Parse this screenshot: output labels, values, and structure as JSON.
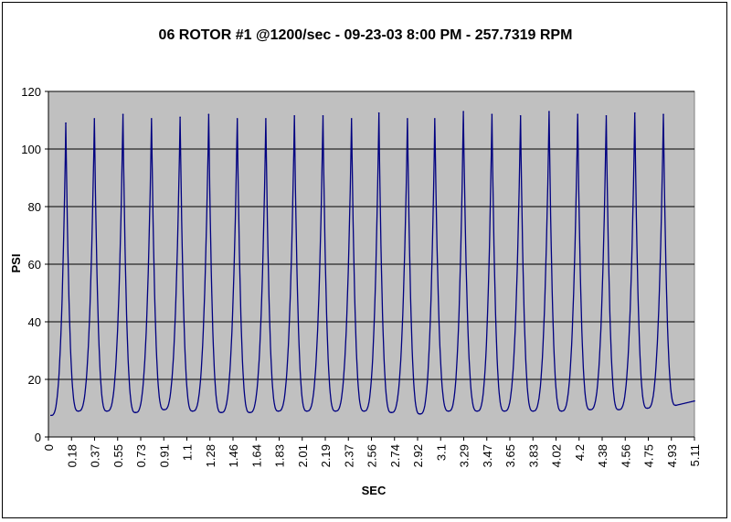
{
  "chart_data": {
    "type": "line",
    "title": "06 ROTOR #1 @1200/sec - 09-23-03 8:00 PM - 257.7319 RPM",
    "xlabel": "SEC",
    "ylabel": "PSI",
    "ylim": [
      0,
      120
    ],
    "y_ticks": [
      "0",
      "20",
      "40",
      "60",
      "80",
      "100",
      "120"
    ],
    "x_tick_labels": [
      "0",
      "0.18",
      "0.37",
      "0.55",
      "0.73",
      "0.91",
      "1.1",
      "1.28",
      "1.46",
      "1.64",
      "1.83",
      "2.01",
      "2.19",
      "2.37",
      "2.56",
      "2.74",
      "2.92",
      "3.1",
      "3.29",
      "3.47",
      "3.65",
      "3.83",
      "4.02",
      "4.2",
      "4.38",
      "4.56",
      "4.75",
      "4.93",
      "5.11"
    ],
    "xlim": [
      0,
      5.2
    ],
    "grid": true,
    "plot_background": "#c0c0c0",
    "series": [
      {
        "color": "#000080",
        "peaks": [
          {
            "x": 0.14,
            "y": 109
          },
          {
            "x": 0.37,
            "y": 110.5
          },
          {
            "x": 0.6,
            "y": 112
          },
          {
            "x": 0.83,
            "y": 110.5
          },
          {
            "x": 1.06,
            "y": 111
          },
          {
            "x": 1.29,
            "y": 112
          },
          {
            "x": 1.52,
            "y": 110.5
          },
          {
            "x": 1.75,
            "y": 110.5
          },
          {
            "x": 1.98,
            "y": 111.5
          },
          {
            "x": 2.21,
            "y": 111.5
          },
          {
            "x": 2.44,
            "y": 110.5
          },
          {
            "x": 2.66,
            "y": 112.5
          },
          {
            "x": 2.89,
            "y": 110.5
          },
          {
            "x": 3.11,
            "y": 110.5
          },
          {
            "x": 3.34,
            "y": 113
          },
          {
            "x": 3.57,
            "y": 112
          },
          {
            "x": 3.8,
            "y": 111.5
          },
          {
            "x": 4.03,
            "y": 113
          },
          {
            "x": 4.26,
            "y": 112
          },
          {
            "x": 4.49,
            "y": 111.5
          },
          {
            "x": 4.72,
            "y": 112.5
          },
          {
            "x": 4.95,
            "y": 112
          }
        ],
        "troughs": [
          {
            "x": 0.02,
            "y": 7.5
          },
          {
            "x": 0.24,
            "y": 9
          },
          {
            "x": 0.47,
            "y": 9
          },
          {
            "x": 0.7,
            "y": 8.5
          },
          {
            "x": 0.93,
            "y": 9.5
          },
          {
            "x": 1.16,
            "y": 9
          },
          {
            "x": 1.39,
            "y": 8.5
          },
          {
            "x": 1.62,
            "y": 8.5
          },
          {
            "x": 1.85,
            "y": 9
          },
          {
            "x": 2.08,
            "y": 9
          },
          {
            "x": 2.31,
            "y": 9
          },
          {
            "x": 2.54,
            "y": 9
          },
          {
            "x": 2.76,
            "y": 8.5
          },
          {
            "x": 2.99,
            "y": 8
          },
          {
            "x": 3.22,
            "y": 9
          },
          {
            "x": 3.45,
            "y": 9
          },
          {
            "x": 3.67,
            "y": 9
          },
          {
            "x": 3.9,
            "y": 9
          },
          {
            "x": 4.13,
            "y": 9
          },
          {
            "x": 4.36,
            "y": 9.5
          },
          {
            "x": 4.59,
            "y": 9.5
          },
          {
            "x": 4.82,
            "y": 10
          },
          {
            "x": 5.05,
            "y": 11
          },
          {
            "x": 5.2,
            "y": 12.5
          }
        ]
      }
    ]
  }
}
